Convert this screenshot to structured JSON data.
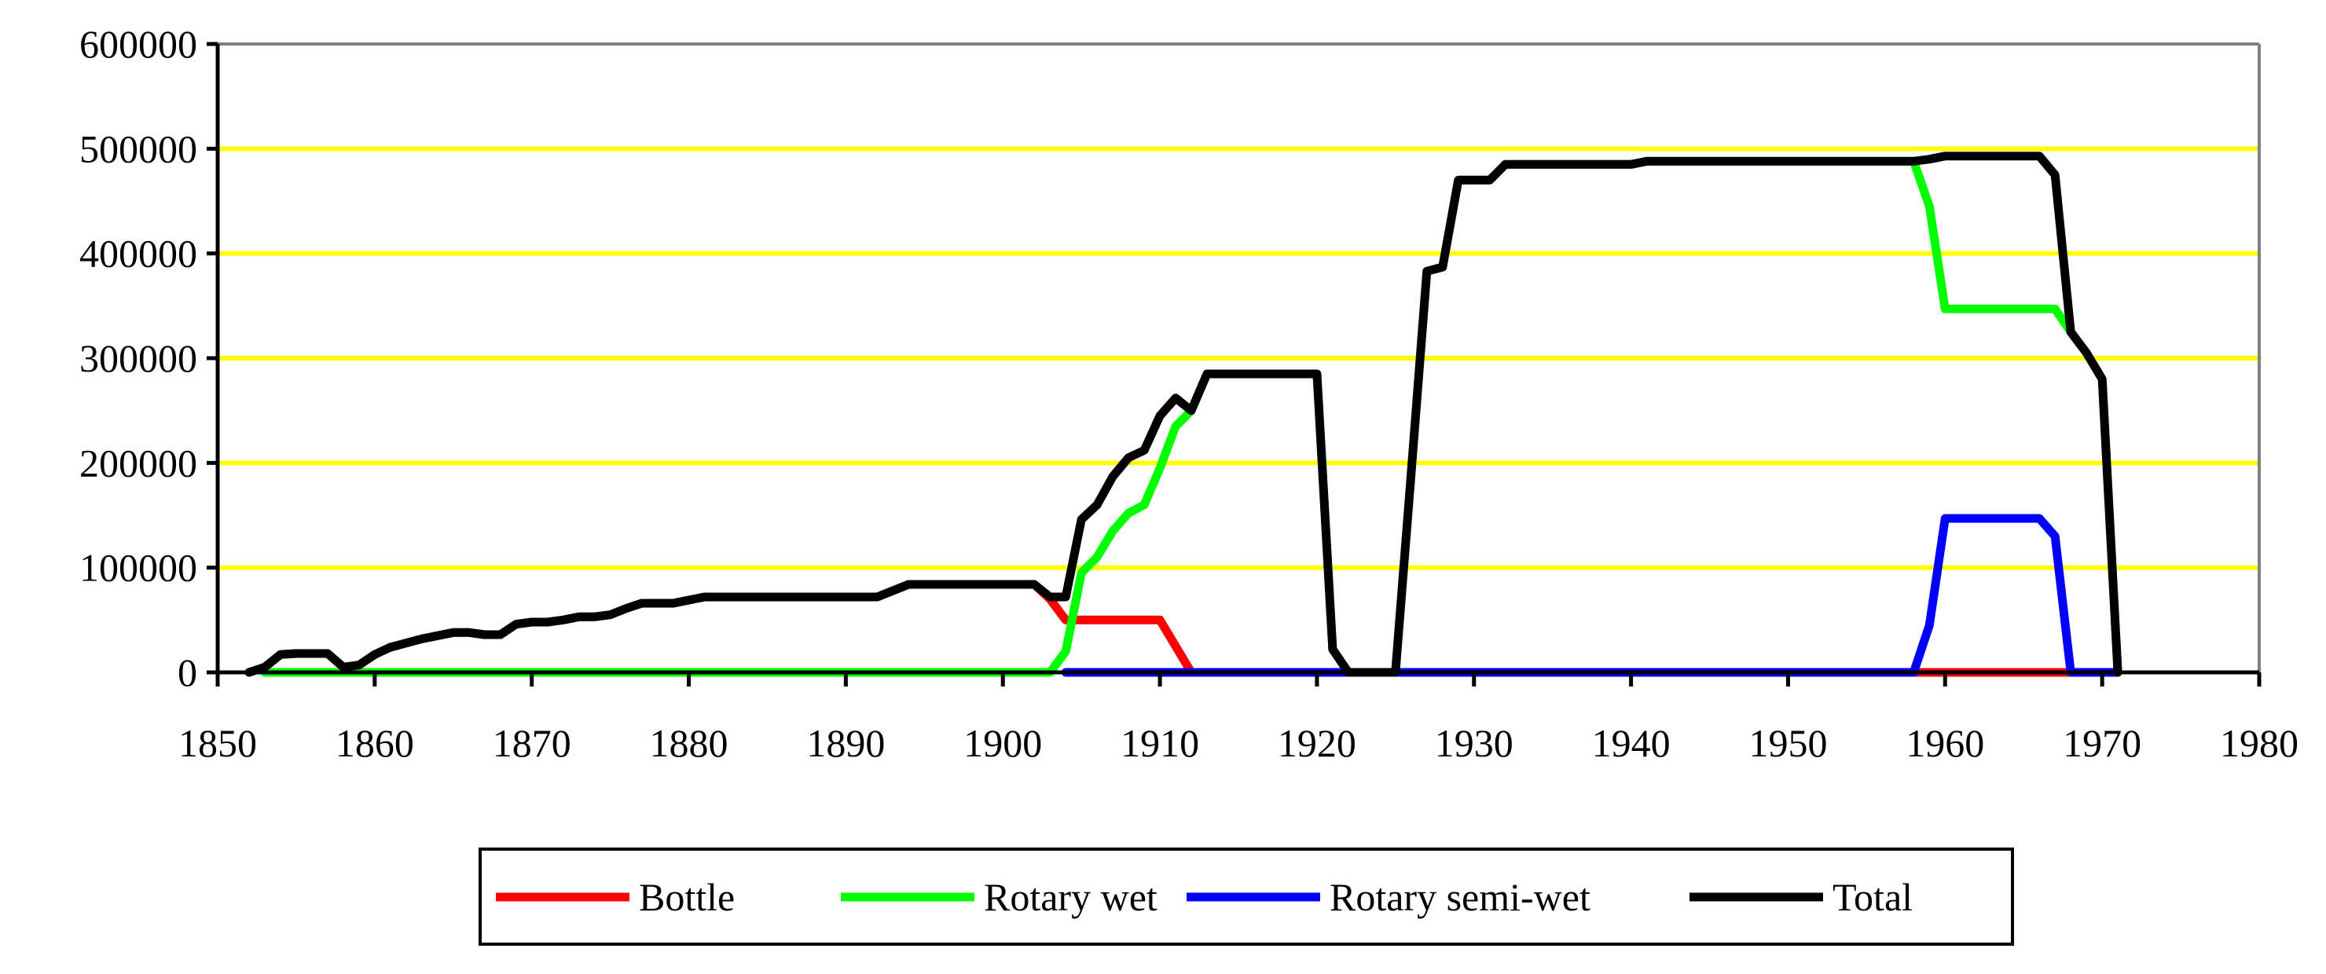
{
  "chart_data": {
    "type": "line",
    "title": "",
    "xlabel": "",
    "ylabel": "",
    "xlim": [
      1850,
      1980
    ],
    "ylim": [
      0,
      600000
    ],
    "x_ticks": [
      "1850",
      "1860",
      "1870",
      "1880",
      "1890",
      "1900",
      "1910",
      "1920",
      "1930",
      "1940",
      "1950",
      "1960",
      "1970",
      "1980"
    ],
    "y_ticks": [
      "0",
      "100000",
      "200000",
      "300000",
      "400000",
      "500000",
      "600000"
    ],
    "grid": true,
    "grid_color": "#ffff00",
    "legend_position": "bottom",
    "series": [
      {
        "name": "Bottle",
        "color": "#ff0000",
        "x": [
          1852,
          1853,
          1854,
          1855,
          1857,
          1858,
          1859,
          1860,
          1861,
          1862,
          1863,
          1864,
          1865,
          1866,
          1867,
          1868,
          1869,
          1870,
          1871,
          1872,
          1873,
          1874,
          1875,
          1876,
          1877,
          1879,
          1880,
          1881,
          1892,
          1893,
          1894,
          1902,
          1903,
          1904,
          1910,
          1911,
          1912,
          1968
        ],
        "y": [
          0,
          5000,
          17000,
          18000,
          18000,
          5000,
          7000,
          17000,
          24000,
          28000,
          32000,
          35000,
          38000,
          38000,
          36000,
          36000,
          46000,
          48000,
          48000,
          50000,
          53000,
          53000,
          55000,
          61000,
          66000,
          66000,
          69000,
          72000,
          72000,
          78000,
          84000,
          84000,
          70000,
          50000,
          50000,
          25000,
          0,
          0
        ]
      },
      {
        "name": "Rotary wet",
        "color": "#00ff00",
        "x": [
          1853,
          1903,
          1904,
          1905,
          1906,
          1907,
          1908,
          1909,
          1910,
          1911,
          1912,
          1913,
          1920,
          1921,
          1922,
          1925,
          1926,
          1927,
          1928,
          1929,
          1931,
          1932,
          1940,
          1941,
          1958,
          1959,
          1960,
          1967,
          1968,
          1969,
          1970,
          1971
        ],
        "y": [
          0,
          0,
          20000,
          95000,
          110000,
          135000,
          152000,
          160000,
          195000,
          235000,
          250000,
          285000,
          285000,
          22000,
          0,
          0,
          190000,
          383000,
          387000,
          470000,
          470000,
          485000,
          485000,
          488000,
          488000,
          445000,
          347000,
          347000,
          325000,
          305000,
          280000,
          0
        ]
      },
      {
        "name": "Rotary semi-wet",
        "color": "#0000ff",
        "x": [
          1904,
          1958,
          1959,
          1960,
          1966,
          1967,
          1968,
          1971
        ],
        "y": [
          0,
          0,
          45000,
          147000,
          147000,
          130000,
          0,
          0
        ]
      },
      {
        "name": "Total",
        "color": "#000000",
        "x": [
          1852,
          1853,
          1854,
          1855,
          1857,
          1858,
          1859,
          1860,
          1861,
          1862,
          1863,
          1864,
          1865,
          1866,
          1867,
          1868,
          1869,
          1870,
          1871,
          1872,
          1873,
          1874,
          1875,
          1876,
          1877,
          1879,
          1880,
          1881,
          1892,
          1893,
          1894,
          1902,
          1903,
          1904,
          1905,
          1906,
          1907,
          1908,
          1909,
          1910,
          1911,
          1912,
          1913,
          1920,
          1921,
          1922,
          1925,
          1926,
          1927,
          1928,
          1929,
          1931,
          1932,
          1940,
          1941,
          1958,
          1959,
          1960,
          1966,
          1967,
          1968,
          1969,
          1970,
          1971
        ],
        "y": [
          0,
          5000,
          17000,
          18000,
          18000,
          5000,
          7000,
          17000,
          24000,
          28000,
          32000,
          35000,
          38000,
          38000,
          36000,
          36000,
          46000,
          48000,
          48000,
          50000,
          53000,
          53000,
          55000,
          61000,
          66000,
          66000,
          69000,
          72000,
          72000,
          78000,
          84000,
          84000,
          72000,
          72000,
          146000,
          160000,
          187000,
          205000,
          212000,
          245000,
          262000,
          250000,
          285000,
          285000,
          22000,
          0,
          0,
          190000,
          383000,
          387000,
          470000,
          470000,
          485000,
          485000,
          488000,
          488000,
          490000,
          493000,
          493000,
          475000,
          325000,
          305000,
          280000,
          0
        ]
      }
    ]
  }
}
